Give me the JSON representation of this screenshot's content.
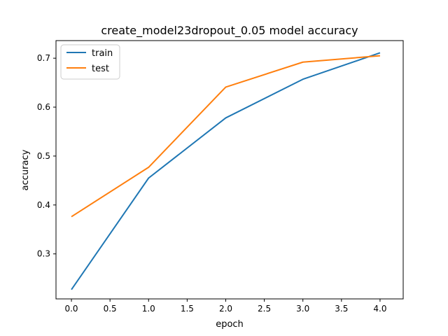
{
  "chart_data": {
    "type": "line",
    "title": "create_model23dropout_0.05 model accuracy",
    "xlabel": "epoch",
    "ylabel": "accuracy",
    "x": [
      0,
      1,
      2,
      3,
      4
    ],
    "series": [
      {
        "name": "train",
        "color": "#1f77b4",
        "values": [
          0.227,
          0.455,
          0.578,
          0.657,
          0.711
        ]
      },
      {
        "name": "test",
        "color": "#ff7f0e",
        "values": [
          0.376,
          0.477,
          0.641,
          0.692,
          0.705
        ]
      }
    ],
    "xlim": [
      -0.2,
      4.3
    ],
    "ylim": [
      0.208,
      0.736
    ],
    "xticks": [
      "0.0",
      "0.5",
      "1.0",
      "1.5",
      "2.0",
      "2.5",
      "3.0",
      "3.5",
      "4.0"
    ],
    "yticks": [
      "0.3",
      "0.4",
      "0.5",
      "0.6",
      "0.7"
    ],
    "grid": false,
    "legend_position": "top-left"
  }
}
